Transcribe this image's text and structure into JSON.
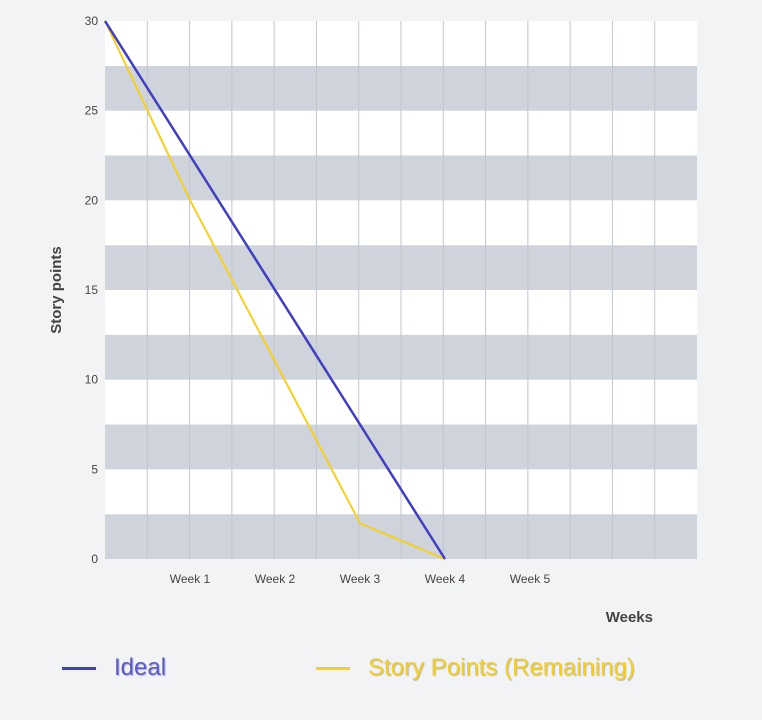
{
  "chart_data": {
    "type": "line",
    "xlabel": "Weeks",
    "ylabel": "Story points",
    "x_tick_labels": [
      "Week 1",
      "Week 2",
      "Week 3",
      "Week 4",
      "Week 5"
    ],
    "y_ticks": [
      0,
      5,
      10,
      15,
      20,
      25,
      30
    ],
    "ylim": [
      0,
      30
    ],
    "grid": true,
    "legend_position": "bottom",
    "series": [
      {
        "name": "Ideal",
        "color": "#3f3fbf",
        "x": [
          0,
          4
        ],
        "y": [
          30,
          0
        ]
      },
      {
        "name": "Story Points (Remaining)",
        "color": "#f5cf22",
        "x": [
          0,
          1,
          2,
          3,
          4
        ],
        "y": [
          30,
          20,
          11,
          2,
          0
        ]
      }
    ]
  },
  "legend": {
    "items": [
      {
        "label": "Ideal",
        "color": "#3f3fbf",
        "text_color": "#5a5acc"
      },
      {
        "label": "Story Points (Remaining)",
        "color": "#f5cf22",
        "text_color": "#f5cf22"
      }
    ]
  }
}
